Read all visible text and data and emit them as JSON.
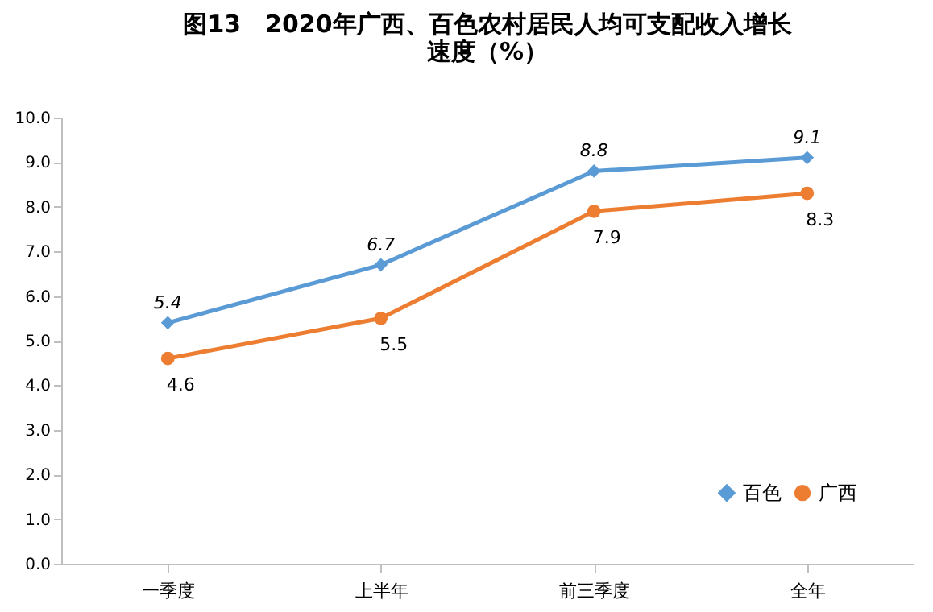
{
  "chart_data": {
    "type": "line",
    "title": "图13　2020年广西、百色农村居民人均可支配收入增长速度（%）",
    "categories": [
      "一季度",
      "上半年",
      "前三季度",
      "全年"
    ],
    "series": [
      {
        "name": "百色",
        "color": "#5b9bd5",
        "marker": "diamond",
        "values": [
          5.4,
          6.7,
          8.8,
          9.1
        ]
      },
      {
        "name": "广西",
        "color": "#ed7d31",
        "marker": "circle",
        "values": [
          4.6,
          5.5,
          7.9,
          8.3
        ]
      }
    ],
    "ylim": [
      0,
      10
    ],
    "yticks": [
      {
        "value": 0,
        "label": "0.0"
      },
      {
        "value": 1,
        "label": "1.0"
      },
      {
        "value": 2,
        "label": "2.0"
      },
      {
        "value": 3,
        "label": "3.0"
      },
      {
        "value": 4,
        "label": "4.0"
      },
      {
        "value": 5,
        "label": "5.0"
      },
      {
        "value": 6,
        "label": "6.0"
      },
      {
        "value": 7,
        "label": "7.0"
      },
      {
        "value": 8,
        "label": "8.0"
      },
      {
        "value": 9,
        "label": "9.0"
      },
      {
        "value": 10,
        "label": "10.0"
      }
    ],
    "grid": false,
    "legend": "bottom right",
    "data_labels": true,
    "line_style": "solid"
  }
}
